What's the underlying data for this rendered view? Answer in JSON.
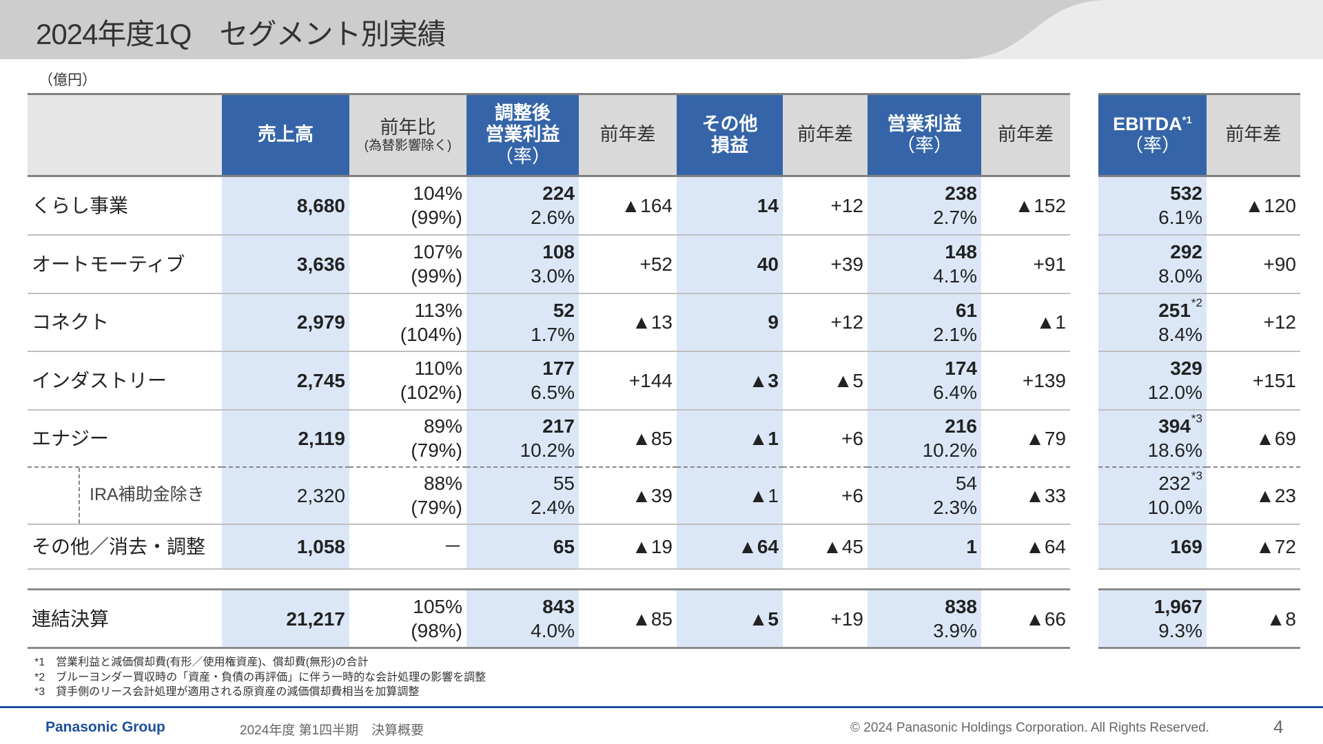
{
  "title": "2024年度1Q　セグメント別実績",
  "unit": "（億円）",
  "headers": {
    "sales": "売上高",
    "yoy": "前年比",
    "yoy_sub": "(為替影響除く)",
    "adj_op1": "調整後",
    "adj_op2": "営業利益",
    "adj_op3": "（率）",
    "diff": "前年差",
    "other1": "その他",
    "other2": "損益",
    "op1": "営業利益",
    "op2": "（率）",
    "ebitda": "EBITDA",
    "ebitda_sup": "*1",
    "ebitda2": "（率）"
  },
  "rows": [
    {
      "label": "くらし事業",
      "cells": [
        {
          "v": "8,680"
        },
        {
          "v": "104%",
          "s": "(99%)"
        },
        {
          "v": "224",
          "s": "2.6%"
        },
        {
          "v": "▲164"
        },
        {
          "v": "14"
        },
        {
          "v": "+12"
        },
        {
          "v": "238",
          "s": "2.7%"
        },
        {
          "v": "▲152"
        }
      ],
      "ebitda": [
        {
          "v": "532",
          "s": "6.1%"
        },
        {
          "v": "▲120"
        }
      ]
    },
    {
      "label": "オートモーティブ",
      "cells": [
        {
          "v": "3,636"
        },
        {
          "v": "107%",
          "s": "(99%)"
        },
        {
          "v": "108",
          "s": "3.0%"
        },
        {
          "v": "+52"
        },
        {
          "v": "40"
        },
        {
          "v": "+39"
        },
        {
          "v": "148",
          "s": "4.1%"
        },
        {
          "v": "+91"
        }
      ],
      "ebitda": [
        {
          "v": "292",
          "s": "8.0%"
        },
        {
          "v": "+90"
        }
      ]
    },
    {
      "label": "コネクト",
      "cells": [
        {
          "v": "2,979"
        },
        {
          "v": "113%",
          "s": "(104%)"
        },
        {
          "v": "52",
          "s": "1.7%"
        },
        {
          "v": "▲13"
        },
        {
          "v": "9"
        },
        {
          "v": "+12"
        },
        {
          "v": "61",
          "s": "2.1%"
        },
        {
          "v": "▲1"
        }
      ],
      "ebitda": [
        {
          "v": "251",
          "sup": "*2",
          "s": "8.4%"
        },
        {
          "v": "+12"
        }
      ]
    },
    {
      "label": "インダストリー",
      "cells": [
        {
          "v": "2,745"
        },
        {
          "v": "110%",
          "s": "(102%)"
        },
        {
          "v": "177",
          "s": "6.5%"
        },
        {
          "v": "+144"
        },
        {
          "v": "▲3"
        },
        {
          "v": "▲5"
        },
        {
          "v": "174",
          "s": "6.4%"
        },
        {
          "v": "+139"
        }
      ],
      "ebitda": [
        {
          "v": "329",
          "s": "12.0%"
        },
        {
          "v": "+151"
        }
      ]
    },
    {
      "label": "エナジー",
      "cells": [
        {
          "v": "2,119"
        },
        {
          "v": "89%",
          "s": "(79%)"
        },
        {
          "v": "217",
          "s": "10.2%"
        },
        {
          "v": "▲85"
        },
        {
          "v": "▲1"
        },
        {
          "v": "+6"
        },
        {
          "v": "216",
          "s": "10.2%"
        },
        {
          "v": "▲79"
        }
      ],
      "ebitda": [
        {
          "v": "394",
          "sup": "*3",
          "s": "18.6%"
        },
        {
          "v": "▲69"
        }
      ]
    },
    {
      "label": "IRA補助金除き",
      "sub": true,
      "cells": [
        {
          "v": "2,320"
        },
        {
          "v": "88%",
          "s": "(79%)"
        },
        {
          "v": "55",
          "s": "2.4%"
        },
        {
          "v": "▲39"
        },
        {
          "v": "▲1"
        },
        {
          "v": "+6"
        },
        {
          "v": "54",
          "s": "2.3%"
        },
        {
          "v": "▲33"
        }
      ],
      "ebitda": [
        {
          "v": "232",
          "sup": "*3",
          "s": "10.0%"
        },
        {
          "v": "▲23"
        }
      ]
    },
    {
      "label": "その他／消去・調整",
      "cells": [
        {
          "v": "1,058"
        },
        {
          "v": "－"
        },
        {
          "v": "65"
        },
        {
          "v": "▲19"
        },
        {
          "v": "▲64"
        },
        {
          "v": "▲45"
        },
        {
          "v": "1"
        },
        {
          "v": "▲64"
        }
      ],
      "ebitda": [
        {
          "v": "169"
        },
        {
          "v": "▲72"
        }
      ]
    },
    {
      "label": "連結決算",
      "total": true,
      "cells": [
        {
          "v": "21,217"
        },
        {
          "v": "105%",
          "s": "(98%)"
        },
        {
          "v": "843",
          "s": "4.0%"
        },
        {
          "v": "▲85"
        },
        {
          "v": "▲5"
        },
        {
          "v": "+19"
        },
        {
          "v": "838",
          "s": "3.9%"
        },
        {
          "v": "▲66"
        }
      ],
      "ebitda": [
        {
          "v": "1,967",
          "s": "9.3%"
        },
        {
          "v": "▲8"
        }
      ]
    }
  ],
  "footnotes": [
    "*1　営業利益と減価償却費(有形／使用権資産)、償却費(無形)の合計",
    "*2　ブルーヨンダー買収時の「資産・負債の再評価」に伴う一時的な会計処理の影響を調整",
    "*3　貸手側のリース会計処理が適用される原資産の減価償却費相当を加算調整"
  ],
  "footer": {
    "brand": "Panasonic Group",
    "subtitle": "2024年度 第1四半期　決算概要",
    "copyright": "© 2024 Panasonic Holdings Corporation. All Rights Reserved.",
    "page": "4"
  },
  "colors": {
    "header_blue": "#3565a8",
    "highlight": "#dbe7f7",
    "footer_line": "#1d4f9c"
  }
}
